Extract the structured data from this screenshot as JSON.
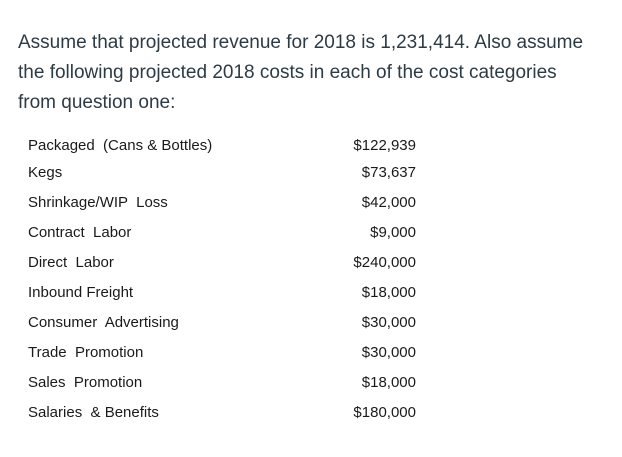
{
  "intro": {
    "line1": "Assume that projected revenue for 2018 is 1,231,414.  Also assume",
    "line2": "the following projected 2018 costs in each of the cost categories",
    "line3": "from question one:"
  },
  "costs": [
    {
      "label": "Packaged  (Cans & Bottles)",
      "amount": "$122,939"
    },
    {
      "label": "Kegs",
      "amount": "$73,637"
    },
    {
      "label": "Shrinkage/WIP  Loss",
      "amount": "$42,000"
    },
    {
      "label": "Contract  Labor",
      "amount": "$9,000"
    },
    {
      "label": "Direct  Labor",
      "amount": "$240,000"
    },
    {
      "label": "Inbound Freight",
      "amount": "$18,000"
    },
    {
      "label": "Consumer  Advertising",
      "amount": "$30,000"
    },
    {
      "label": "Trade  Promotion",
      "amount": "$30,000"
    },
    {
      "label": "Sales  Promotion",
      "amount": "$18,000"
    },
    {
      "label": "Salaries  & Benefits",
      "amount": "$180,000"
    }
  ]
}
